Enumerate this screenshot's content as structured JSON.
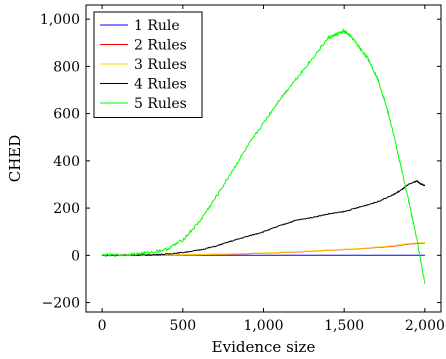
{
  "chart_data": {
    "type": "line",
    "title": "",
    "xlabel": "Evidence size",
    "ylabel": "CHED",
    "xlim": [
      -100,
      2100
    ],
    "ylim": [
      -240,
      1060
    ],
    "x_ticks": [
      0,
      500,
      1000,
      1500,
      2000
    ],
    "x_tick_labels": [
      "0",
      "500",
      "1,000",
      "1,500",
      "2,000"
    ],
    "y_ticks": [
      -200,
      0,
      200,
      400,
      600,
      800,
      1000
    ],
    "y_tick_labels": [
      "−200",
      "0",
      "200",
      "400",
      "600",
      "800",
      "1,000"
    ],
    "grid": false,
    "legend_position": "top-left",
    "series": [
      {
        "name": "1 Rule",
        "color": "#0000ff",
        "x": [
          0,
          500,
          1000,
          1500,
          2000
        ],
        "y": [
          0,
          0,
          0,
          0,
          0
        ]
      },
      {
        "name": "2 Rules",
        "color": "#ff0000",
        "x": [
          0,
          200,
          400,
          600,
          800,
          1000,
          1200,
          1400,
          1600,
          1800,
          1900,
          2000
        ],
        "y": [
          0,
          0,
          1,
          3,
          5,
          9,
          14,
          21,
          28,
          38,
          48,
          52
        ]
      },
      {
        "name": "3 Rules",
        "color": "#ffd400",
        "x": [
          0,
          200,
          400,
          600,
          800,
          1000,
          1200,
          1400,
          1600,
          1800,
          1900,
          2000
        ],
        "y": [
          0,
          0,
          1,
          3,
          6,
          10,
          15,
          22,
          29,
          40,
          50,
          54
        ]
      },
      {
        "name": "4 Rules",
        "color": "#000000",
        "x": [
          0,
          200,
          300,
          400,
          500,
          600,
          700,
          800,
          900,
          1000,
          1100,
          1200,
          1300,
          1400,
          1500,
          1600,
          1700,
          1800,
          1850,
          1900,
          1950,
          1980,
          2000
        ],
        "y": [
          0,
          1,
          2,
          5,
          12,
          22,
          38,
          60,
          80,
          100,
          125,
          148,
          160,
          175,
          185,
          205,
          225,
          255,
          275,
          300,
          315,
          300,
          295
        ]
      },
      {
        "name": "5 Rules",
        "color": "#00ff00",
        "x": [
          0,
          100,
          200,
          300,
          400,
          500,
          600,
          700,
          800,
          900,
          1000,
          1100,
          1200,
          1300,
          1400,
          1450,
          1500,
          1550,
          1600,
          1650,
          1700,
          1750,
          1800,
          1850,
          1900,
          1950,
          2000
        ],
        "y": [
          0,
          1,
          5,
          12,
          25,
          65,
          140,
          240,
          350,
          460,
          560,
          660,
          745,
          830,
          920,
          935,
          950,
          920,
          875,
          830,
          760,
          660,
          530,
          380,
          230,
          70,
          -120
        ]
      }
    ]
  }
}
